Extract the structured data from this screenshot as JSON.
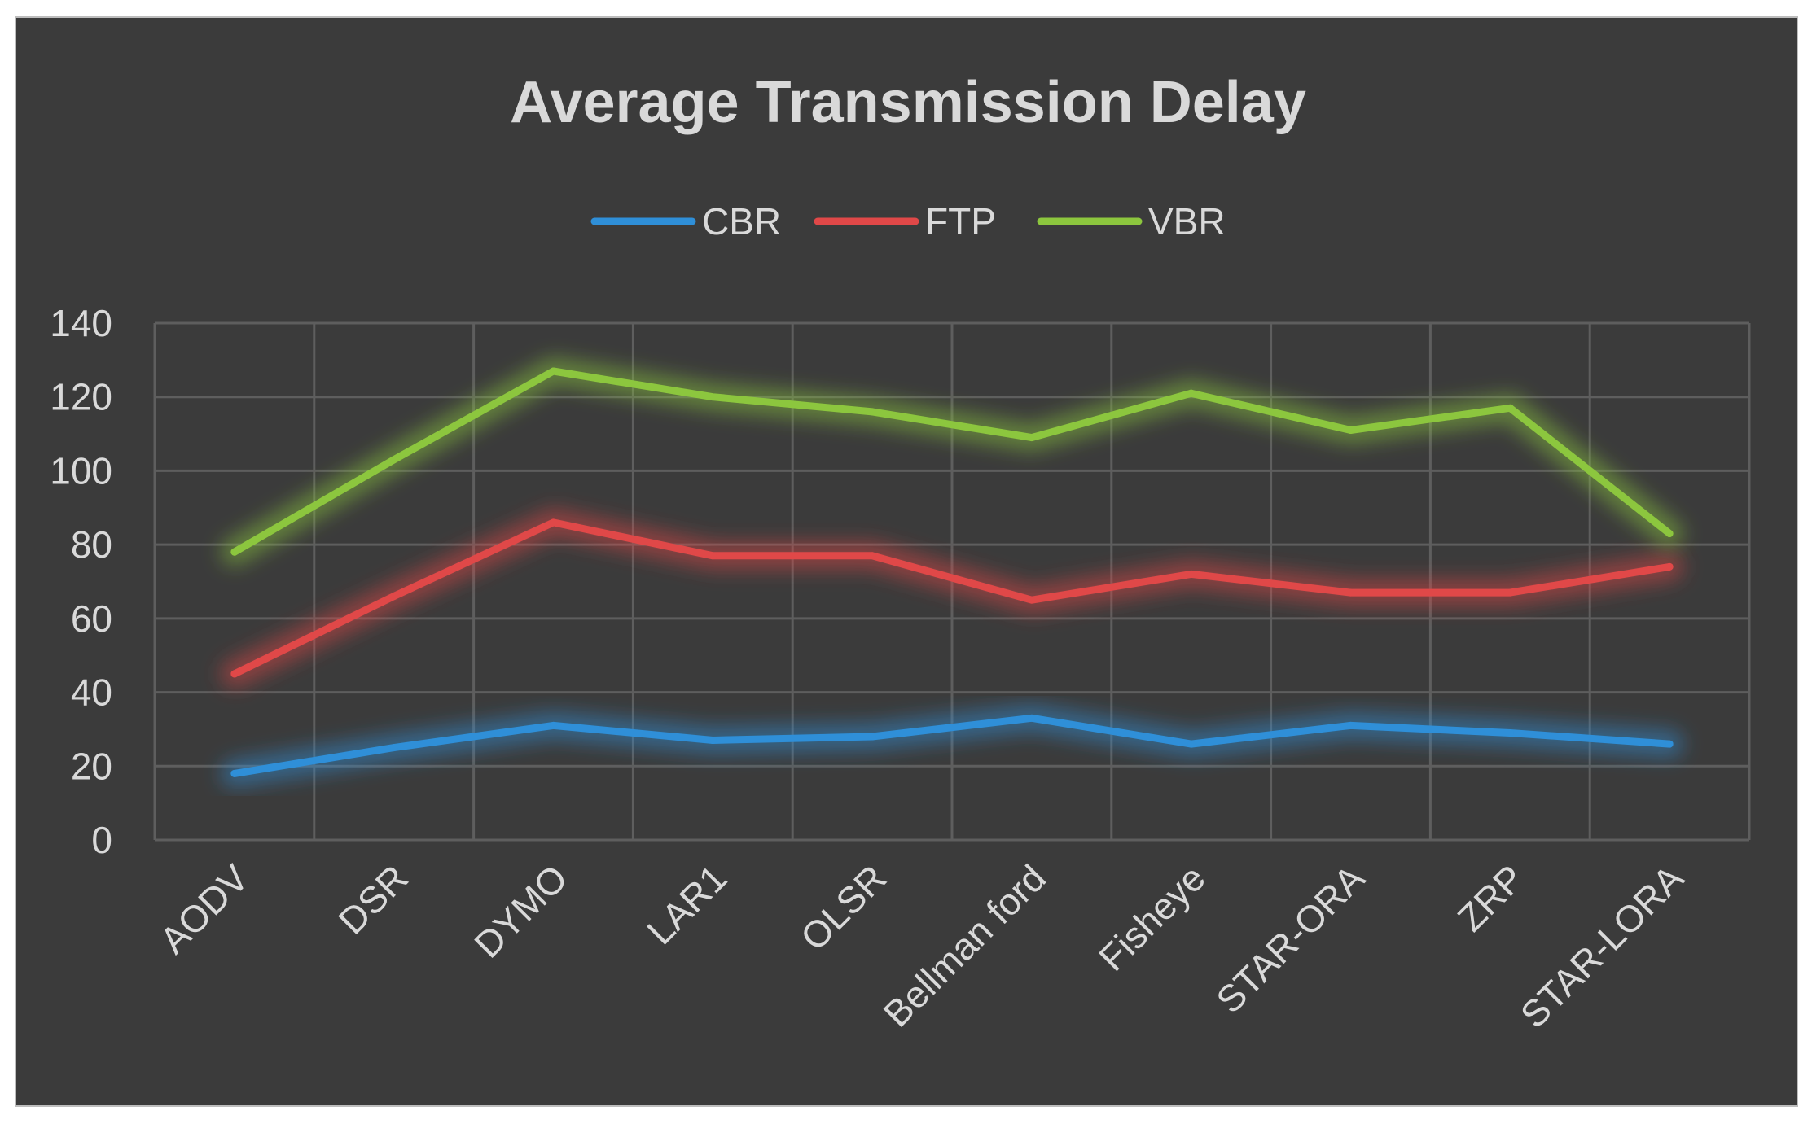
{
  "chart_data": {
    "type": "line",
    "title": "Average Transmission Delay",
    "categories": [
      "AODV",
      "DSR",
      "DYMO",
      "LAR1",
      "OLSR",
      "Bellman ford",
      "Fisheye",
      "STAR-ORA",
      "ZRP",
      "STAR-LORA"
    ],
    "series": [
      {
        "name": "CBR",
        "color": "#2f8fd8",
        "values": [
          18,
          25,
          31,
          27,
          28,
          33,
          26,
          31,
          29,
          26
        ]
      },
      {
        "name": "FTP",
        "color": "#e04848",
        "values": [
          45,
          66,
          86,
          77,
          77,
          65,
          72,
          67,
          67,
          74
        ]
      },
      {
        "name": "VBR",
        "color": "#8cc63e",
        "values": [
          78,
          103,
          127,
          120,
          116,
          109,
          121,
          111,
          117,
          83
        ]
      }
    ],
    "yticks": [
      "0",
      "20",
      "40",
      "60",
      "80",
      "100",
      "120",
      "140"
    ],
    "ylim": [
      0,
      140
    ],
    "xlabel": "",
    "ylabel": "",
    "grid": true,
    "legend_position": "top-center"
  }
}
